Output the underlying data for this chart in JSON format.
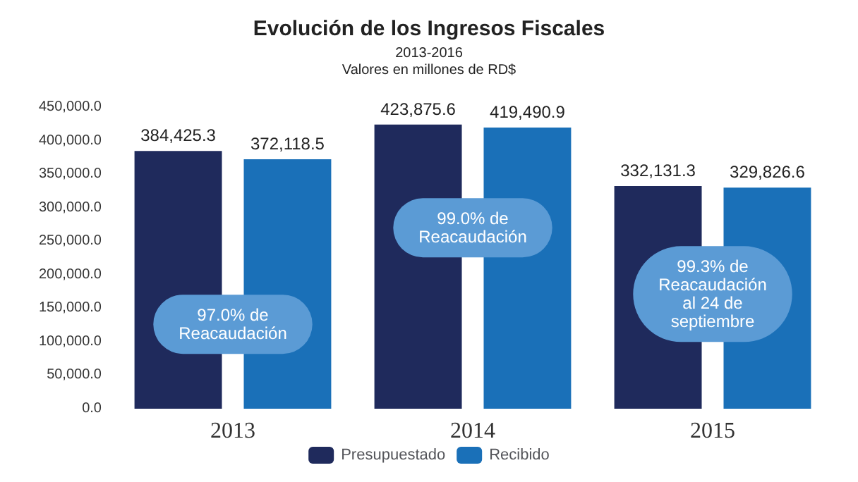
{
  "chart_data": {
    "type": "bar",
    "title": "Evolución de los Ingresos Fiscales",
    "subtitle": "2013-2016\nValores en millones de RD$",
    "categories": [
      "2013",
      "2014",
      "2015"
    ],
    "series": [
      {
        "name": "Presupuestado",
        "color": "#1f2a5c",
        "values": [
          384425.3,
          423875.6,
          332131.3
        ],
        "value_labels": [
          "384,425.3",
          "423,875.6",
          "332,131.3"
        ]
      },
      {
        "name": "Recibido",
        "color": "#1a70b8",
        "values": [
          372118.5,
          419490.9,
          329826.6
        ],
        "value_labels": [
          "372,118.5",
          "419,490.9",
          "329,826.6"
        ]
      }
    ],
    "ylim": [
      0,
      450000
    ],
    "yticks": [
      {
        "value": 0,
        "label": "0.0"
      },
      {
        "value": 50000,
        "label": "50,000.0"
      },
      {
        "value": 100000,
        "label": "100,000.0"
      },
      {
        "value": 150000,
        "label": "150,000.0"
      },
      {
        "value": 200000,
        "label": "200,000.0"
      },
      {
        "value": 250000,
        "label": "250,000.0"
      },
      {
        "value": 300000,
        "label": "300,000.0"
      },
      {
        "value": 350000,
        "label": "350,000.0"
      },
      {
        "value": 400000,
        "label": "400,000.0"
      },
      {
        "value": 450000,
        "label": "450,000.0"
      }
    ],
    "annotations": [
      "97.0% de\nReacaudación",
      "99.0% de\nReacaudación",
      "99.3% de\nReacaudación\nal 24 de\nseptiembre"
    ],
    "grid": false,
    "legend": "bottom"
  }
}
